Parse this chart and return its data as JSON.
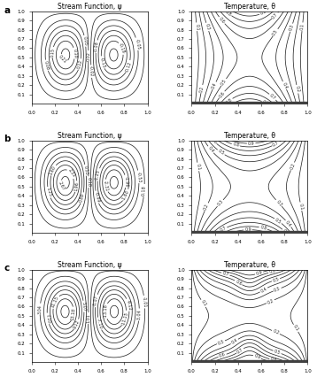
{
  "title_stream": "Stream Function, ψ",
  "title_temp": "Temperature, θ",
  "row_labels": [
    "a",
    "b",
    "c"
  ],
  "figsize": [
    3.58,
    4.26
  ],
  "dpi": 100,
  "contour_color": "#2a2a2a",
  "linewidth": 0.55,
  "clabel_fontsize": 3.5,
  "title_fontsize": 5.5,
  "tick_fontsize": 4.0,
  "label_fontsize": 7.5,
  "xticks": [
    0,
    0.2,
    0.4,
    0.6,
    0.8,
    1.0
  ],
  "yticks": [
    0.1,
    0.2,
    0.3,
    0.4,
    0.5,
    0.6,
    0.7,
    0.8,
    0.9,
    1.0
  ],
  "temp_levels": [
    0.1,
    0.2,
    0.3,
    0.4,
    0.5,
    0.6,
    0.7,
    0.8,
    0.9
  ]
}
